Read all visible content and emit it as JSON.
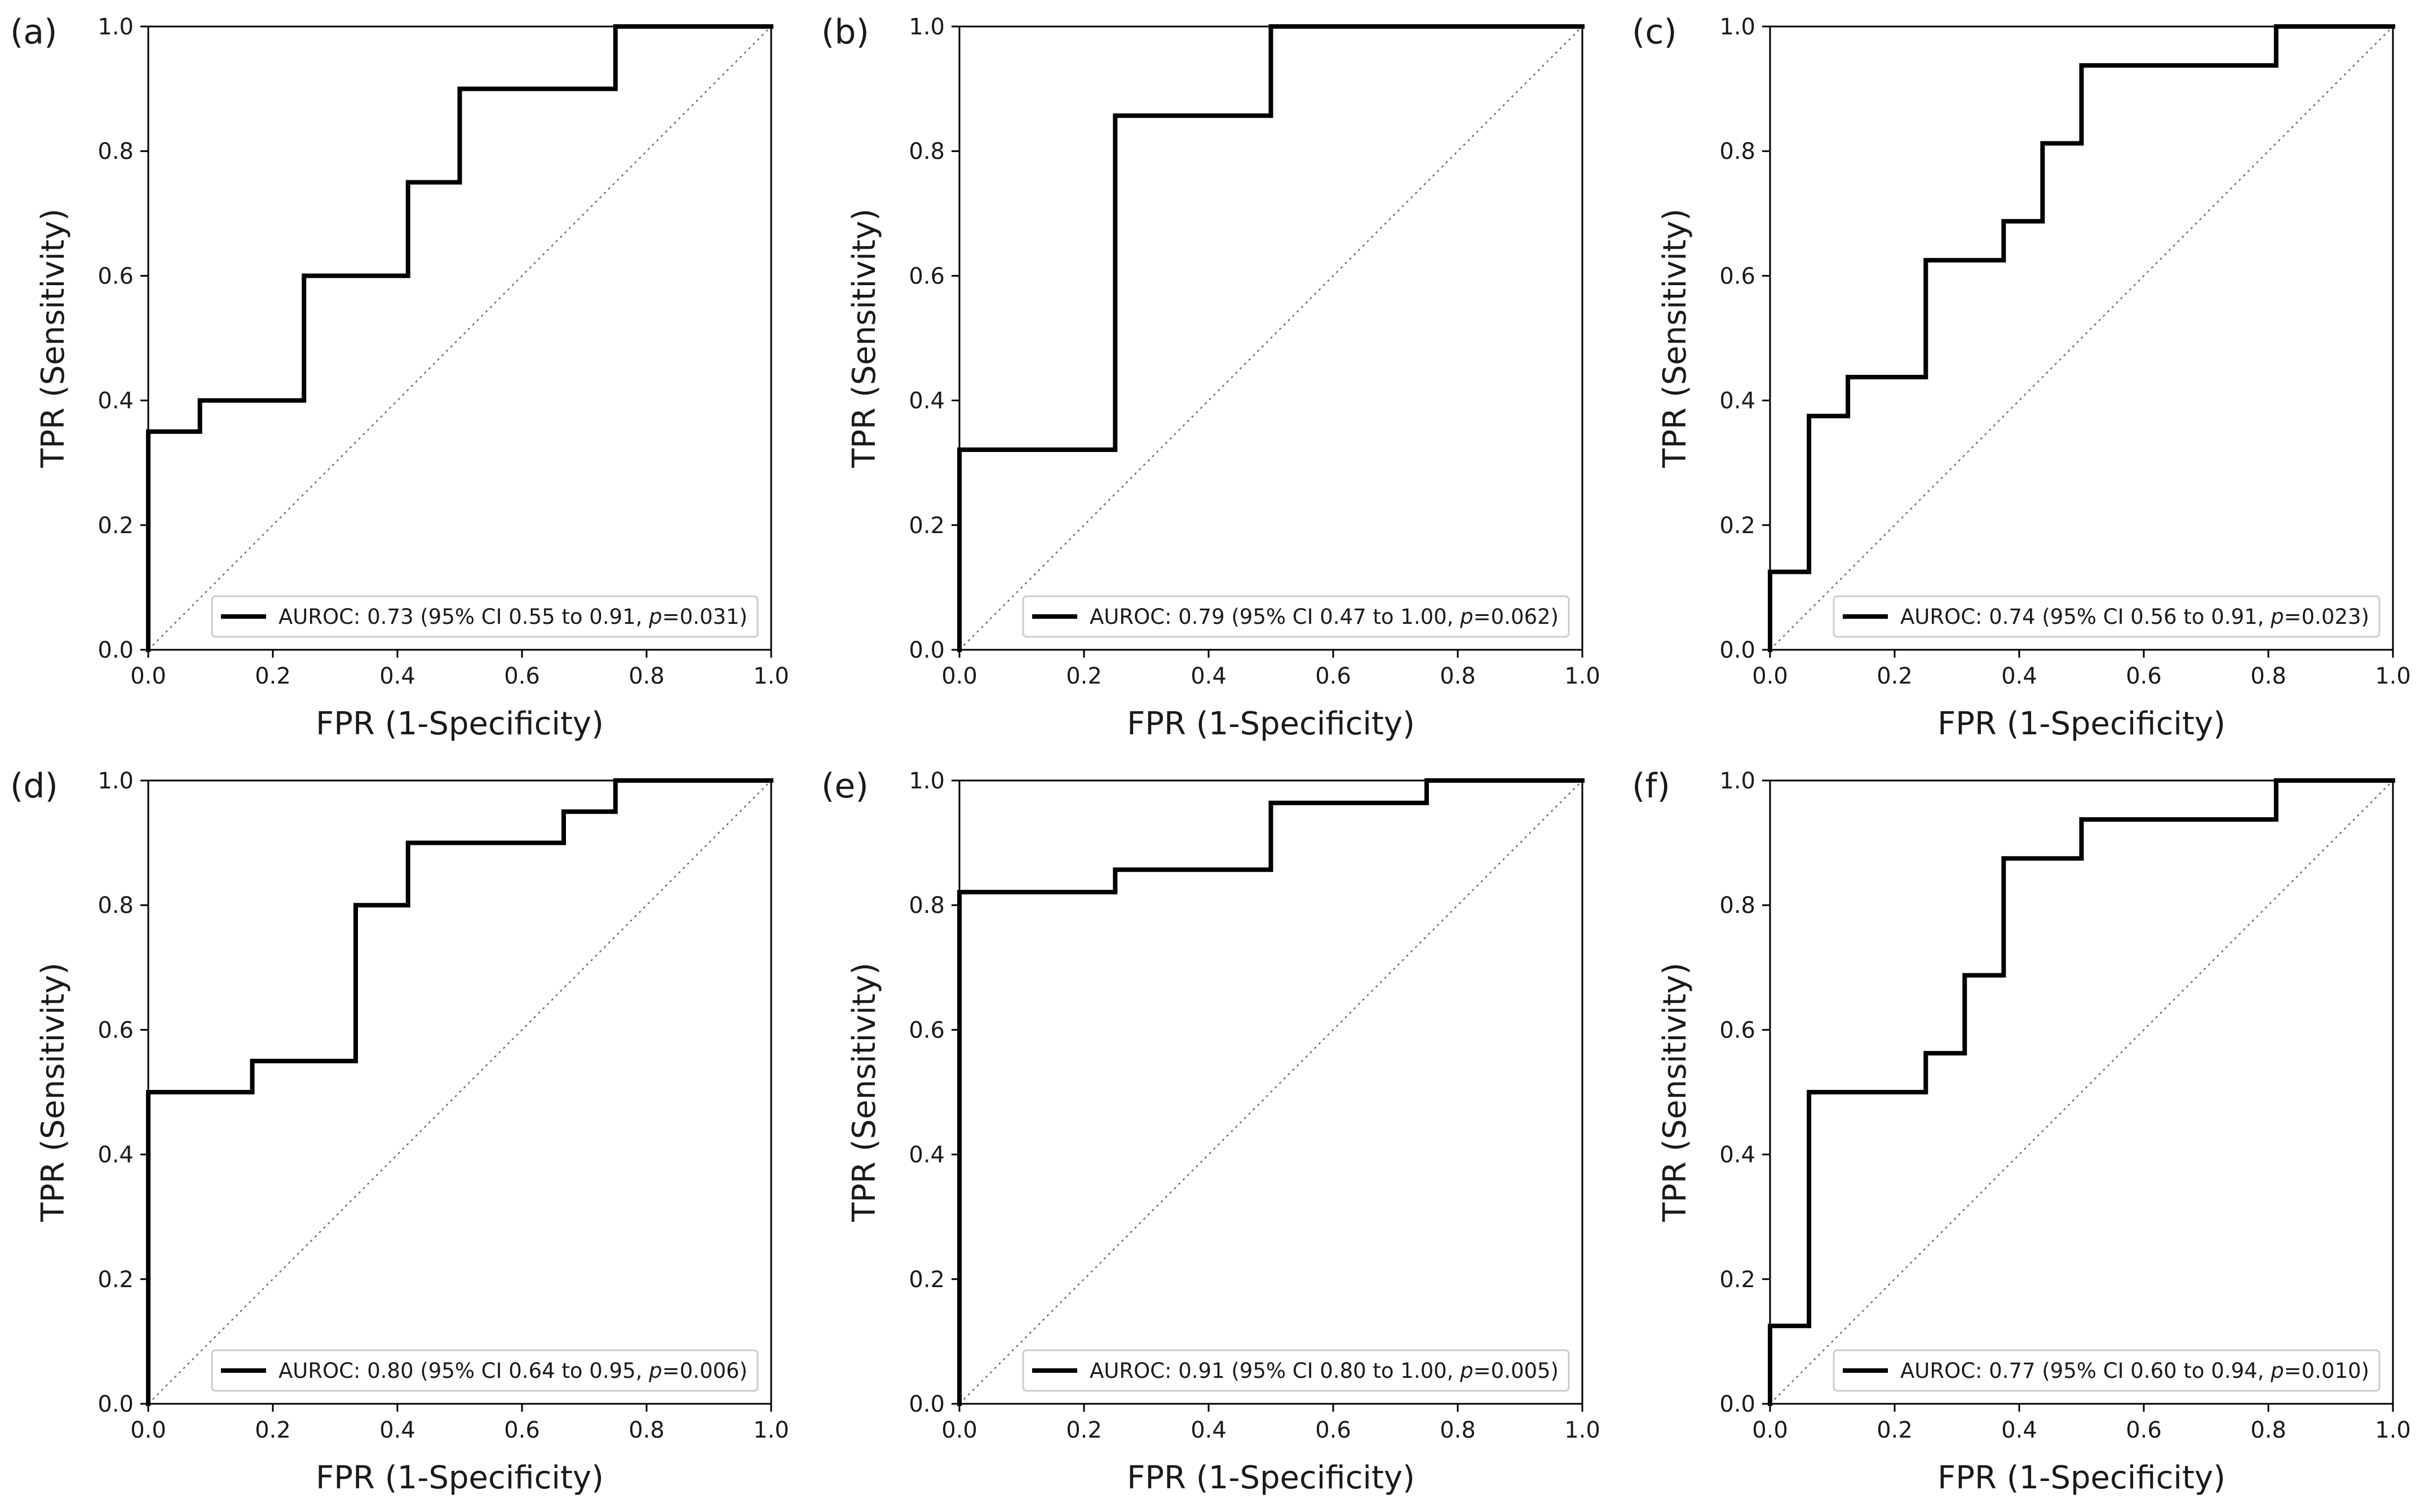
{
  "chart_data": [
    {
      "panel": "(a)",
      "type": "line",
      "xlabel": "FPR (1-Specificity)",
      "ylabel": "TPR (Sensitivity)",
      "xlim": [
        0,
        1
      ],
      "ylim": [
        0,
        1
      ],
      "xticks": [
        "0.0",
        "0.2",
        "0.4",
        "0.6",
        "0.8",
        "1.0"
      ],
      "yticks": [
        "0.0",
        "0.2",
        "0.4",
        "0.6",
        "0.8",
        "1.0"
      ],
      "grid": false,
      "legend_position": "lower-right",
      "chance_line": true,
      "series": [
        {
          "points": [
            [
              0,
              0
            ],
            [
              0,
              0.35
            ],
            [
              0.083,
              0.35
            ],
            [
              0.083,
              0.4
            ],
            [
              0.25,
              0.4
            ],
            [
              0.25,
              0.6
            ],
            [
              0.417,
              0.6
            ],
            [
              0.417,
              0.75
            ],
            [
              0.5,
              0.75
            ],
            [
              0.5,
              0.9
            ],
            [
              0.75,
              0.9
            ],
            [
              0.75,
              1.0
            ],
            [
              1.0,
              1.0
            ]
          ]
        }
      ],
      "legend": {
        "text": "AUROC: 0.73 (95% CI 0.55 to 0.91, ",
        "p_symbol": "p",
        "p_value": "=0.031)"
      }
    },
    {
      "panel": "(b)",
      "type": "line",
      "xlabel": "FPR (1-Specificity)",
      "ylabel": "TPR (Sensitivity)",
      "xlim": [
        0,
        1
      ],
      "ylim": [
        0,
        1
      ],
      "xticks": [
        "0.0",
        "0.2",
        "0.4",
        "0.6",
        "0.8",
        "1.0"
      ],
      "yticks": [
        "0.0",
        "0.2",
        "0.4",
        "0.6",
        "0.8",
        "1.0"
      ],
      "grid": false,
      "legend_position": "lower-right",
      "chance_line": true,
      "series": [
        {
          "points": [
            [
              0,
              0
            ],
            [
              0,
              0.321
            ],
            [
              0.25,
              0.321
            ],
            [
              0.25,
              0.857
            ],
            [
              0.5,
              0.857
            ],
            [
              0.5,
              1.0
            ],
            [
              1.0,
              1.0
            ]
          ]
        }
      ],
      "legend": {
        "text": "AUROC: 0.79 (95% CI 0.47 to 1.00, ",
        "p_symbol": "p",
        "p_value": "=0.062)"
      }
    },
    {
      "panel": "(c)",
      "type": "line",
      "xlabel": "FPR (1-Specificity)",
      "ylabel": "TPR (Sensitivity)",
      "xlim": [
        0,
        1
      ],
      "ylim": [
        0,
        1
      ],
      "xticks": [
        "0.0",
        "0.2",
        "0.4",
        "0.6",
        "0.8",
        "1.0"
      ],
      "yticks": [
        "0.0",
        "0.2",
        "0.4",
        "0.6",
        "0.8",
        "1.0"
      ],
      "grid": false,
      "legend_position": "lower-right",
      "chance_line": true,
      "series": [
        {
          "points": [
            [
              0,
              0
            ],
            [
              0,
              0.125
            ],
            [
              0.0625,
              0.125
            ],
            [
              0.0625,
              0.375
            ],
            [
              0.125,
              0.375
            ],
            [
              0.125,
              0.4375
            ],
            [
              0.25,
              0.4375
            ],
            [
              0.25,
              0.625
            ],
            [
              0.375,
              0.625
            ],
            [
              0.375,
              0.6875
            ],
            [
              0.4375,
              0.6875
            ],
            [
              0.4375,
              0.8125
            ],
            [
              0.5,
              0.8125
            ],
            [
              0.5,
              0.9375
            ],
            [
              0.8125,
              0.9375
            ],
            [
              0.8125,
              1.0
            ],
            [
              1.0,
              1.0
            ]
          ]
        }
      ],
      "legend": {
        "text": "AUROC: 0.74 (95% CI 0.56 to 0.91, ",
        "p_symbol": "p",
        "p_value": "=0.023)"
      }
    },
    {
      "panel": "(d)",
      "type": "line",
      "xlabel": "FPR (1-Specificity)",
      "ylabel": "TPR (Sensitivity)",
      "xlim": [
        0,
        1
      ],
      "ylim": [
        0,
        1
      ],
      "xticks": [
        "0.0",
        "0.2",
        "0.4",
        "0.6",
        "0.8",
        "1.0"
      ],
      "yticks": [
        "0.0",
        "0.2",
        "0.4",
        "0.6",
        "0.8",
        "1.0"
      ],
      "grid": false,
      "legend_position": "lower-right",
      "chance_line": true,
      "series": [
        {
          "points": [
            [
              0,
              0
            ],
            [
              0,
              0.5
            ],
            [
              0.167,
              0.5
            ],
            [
              0.167,
              0.55
            ],
            [
              0.333,
              0.55
            ],
            [
              0.333,
              0.8
            ],
            [
              0.417,
              0.8
            ],
            [
              0.417,
              0.9
            ],
            [
              0.667,
              0.9
            ],
            [
              0.667,
              0.95
            ],
            [
              0.75,
              0.95
            ],
            [
              0.75,
              1.0
            ],
            [
              1.0,
              1.0
            ]
          ]
        }
      ],
      "legend": {
        "text": "AUROC: 0.80 (95% CI 0.64 to 0.95, ",
        "p_symbol": "p",
        "p_value": "=0.006)"
      }
    },
    {
      "panel": "(e)",
      "type": "line",
      "xlabel": "FPR (1-Specificity)",
      "ylabel": "TPR (Sensitivity)",
      "xlim": [
        0,
        1
      ],
      "ylim": [
        0,
        1
      ],
      "xticks": [
        "0.0",
        "0.2",
        "0.4",
        "0.6",
        "0.8",
        "1.0"
      ],
      "yticks": [
        "0.0",
        "0.2",
        "0.4",
        "0.6",
        "0.8",
        "1.0"
      ],
      "grid": false,
      "legend_position": "lower-right",
      "chance_line": true,
      "series": [
        {
          "points": [
            [
              0,
              0
            ],
            [
              0,
              0.821
            ],
            [
              0.25,
              0.821
            ],
            [
              0.25,
              0.857
            ],
            [
              0.5,
              0.857
            ],
            [
              0.5,
              0.964
            ],
            [
              0.75,
              0.964
            ],
            [
              0.75,
              1.0
            ],
            [
              1.0,
              1.0
            ]
          ]
        }
      ],
      "legend": {
        "text": "AUROC: 0.91 (95% CI 0.80 to 1.00, ",
        "p_symbol": "p",
        "p_value": "=0.005)"
      }
    },
    {
      "panel": "(f)",
      "type": "line",
      "xlabel": "FPR (1-Specificity)",
      "ylabel": "TPR (Sensitivity)",
      "xlim": [
        0,
        1
      ],
      "ylim": [
        0,
        1
      ],
      "xticks": [
        "0.0",
        "0.2",
        "0.4",
        "0.6",
        "0.8",
        "1.0"
      ],
      "yticks": [
        "0.0",
        "0.2",
        "0.4",
        "0.6",
        "0.8",
        "1.0"
      ],
      "grid": false,
      "legend_position": "lower-right",
      "chance_line": true,
      "series": [
        {
          "points": [
            [
              0,
              0
            ],
            [
              0,
              0.125
            ],
            [
              0.0625,
              0.125
            ],
            [
              0.0625,
              0.5
            ],
            [
              0.25,
              0.5
            ],
            [
              0.25,
              0.5625
            ],
            [
              0.3125,
              0.5625
            ],
            [
              0.3125,
              0.6875
            ],
            [
              0.375,
              0.6875
            ],
            [
              0.375,
              0.875
            ],
            [
              0.5,
              0.875
            ],
            [
              0.5,
              0.9375
            ],
            [
              0.8125,
              0.9375
            ],
            [
              0.8125,
              1.0
            ],
            [
              1.0,
              1.0
            ]
          ]
        }
      ],
      "legend": {
        "text": "AUROC: 0.77 (95% CI 0.60 to 0.94, ",
        "p_symbol": "p",
        "p_value": "=0.010)"
      }
    }
  ]
}
